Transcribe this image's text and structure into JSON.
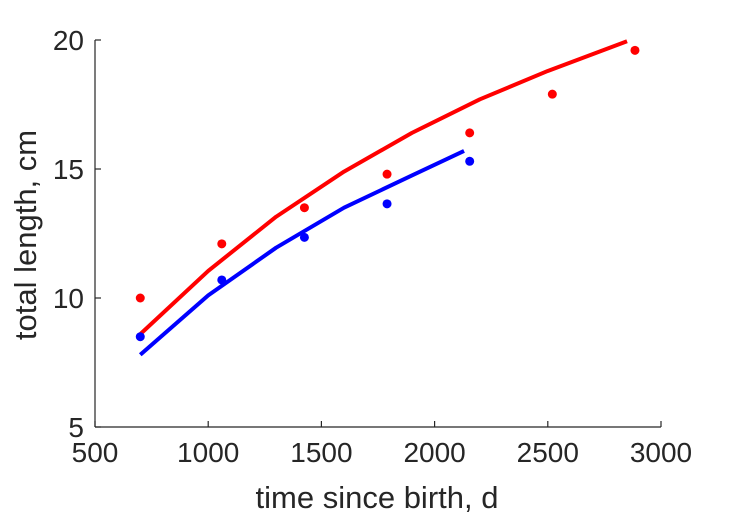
{
  "chart_data": {
    "type": "scatter",
    "title": "",
    "xlabel": "time since birth, d",
    "ylabel": "total length, cm",
    "xlim": [
      500,
      3000
    ],
    "ylim": [
      5,
      20
    ],
    "x_ticks": [
      500,
      1000,
      1500,
      2000,
      2500,
      3000
    ],
    "y_ticks": [
      5,
      10,
      15,
      20
    ],
    "grid": false,
    "legend": "none",
    "series": [
      {
        "color": "#ff0000",
        "kind": "points",
        "x": [
          700,
          1060,
          1425,
          1790,
          2155,
          2520,
          2885
        ],
        "y": [
          10.0,
          12.1,
          13.5,
          14.8,
          16.4,
          17.9,
          19.6
        ]
      },
      {
        "color": "#0000ff",
        "kind": "points",
        "x": [
          700,
          1060,
          1425,
          1790,
          2155
        ],
        "y": [
          8.5,
          10.7,
          12.35,
          13.65,
          15.3
        ]
      },
      {
        "color": "#ff0000",
        "kind": "line",
        "x": [
          700,
          1000,
          1300,
          1600,
          1900,
          2200,
          2500,
          2850
        ],
        "y": [
          8.6,
          11.05,
          13.15,
          14.9,
          16.4,
          17.7,
          18.8,
          19.95
        ]
      },
      {
        "color": "#0000ff",
        "kind": "line",
        "x": [
          700,
          1000,
          1300,
          1600,
          1900,
          2130
        ],
        "y": [
          7.8,
          10.1,
          11.95,
          13.5,
          14.75,
          15.7
        ]
      }
    ]
  }
}
